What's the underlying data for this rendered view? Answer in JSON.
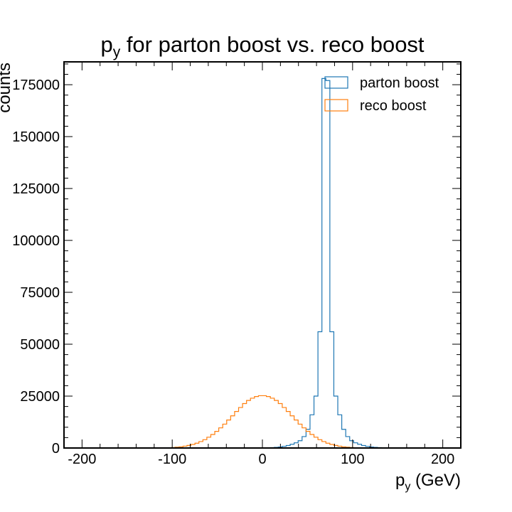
{
  "chart_data": {
    "type": "histogram-step",
    "title": {
      "main": "p",
      "sub": "y",
      "rest": " for parton boost vs. reco boost"
    },
    "xlabel": {
      "main": "p",
      "sub": "y",
      "rest": " (GeV)"
    },
    "ylabel": "counts",
    "xlim": [
      -220,
      220
    ],
    "ylim": [
      0,
      186000
    ],
    "xticks": [
      -200,
      -100,
      0,
      100,
      200
    ],
    "yticks": [
      0,
      25000,
      50000,
      75000,
      100000,
      125000,
      150000,
      175000
    ],
    "bin_edges_start": -220,
    "bin_width": 4.4,
    "legend_position": "top-right",
    "series": [
      {
        "name": "parton boost",
        "color": "#1f77b4",
        "values": [
          0,
          0,
          0,
          0,
          0,
          0,
          0,
          0,
          0,
          0,
          0,
          0,
          0,
          0,
          0,
          0,
          0,
          0,
          0,
          0,
          0,
          0,
          0,
          0,
          0,
          0,
          0,
          0,
          0,
          0,
          0,
          0,
          0,
          0,
          0,
          0,
          0,
          0,
          0,
          0,
          0,
          0,
          0,
          0,
          0,
          0,
          0,
          0,
          0,
          0,
          50,
          100,
          200,
          300,
          500,
          800,
          1200,
          1800,
          2500,
          3500,
          5500,
          9000,
          16000,
          25000,
          56000,
          178000,
          177000,
          56000,
          25000,
          16000,
          9000,
          5500,
          3500,
          2500,
          1800,
          1200,
          800,
          500,
          300,
          200,
          100,
          50,
          0,
          0,
          0,
          0,
          0,
          0,
          0,
          0,
          0,
          0,
          0,
          0,
          0,
          0,
          0,
          0,
          0,
          0
        ]
      },
      {
        "name": "reco boost",
        "color": "#ff7f0e",
        "values": [
          0,
          0,
          0,
          0,
          0,
          0,
          0,
          0,
          0,
          0,
          0,
          0,
          0,
          0,
          0,
          0,
          0,
          0,
          0,
          0,
          0,
          0,
          10,
          20,
          40,
          90,
          150,
          240,
          380,
          570,
          870,
          1230,
          1700,
          2300,
          3100,
          4000,
          5200,
          6500,
          8000,
          9700,
          11500,
          13500,
          15500,
          17600,
          19500,
          21400,
          22900,
          24000,
          24800,
          25200,
          25200,
          24800,
          24000,
          22900,
          21400,
          19500,
          17600,
          15500,
          13500,
          11500,
          9700,
          8000,
          6500,
          5200,
          4000,
          3100,
          2300,
          1700,
          1230,
          870,
          570,
          380,
          240,
          150,
          90,
          40,
          20,
          10,
          0,
          0,
          0,
          0,
          0,
          0,
          0,
          0,
          0,
          0,
          0,
          0,
          0,
          0,
          0,
          0,
          0,
          0,
          0,
          0,
          0,
          0
        ]
      }
    ]
  }
}
